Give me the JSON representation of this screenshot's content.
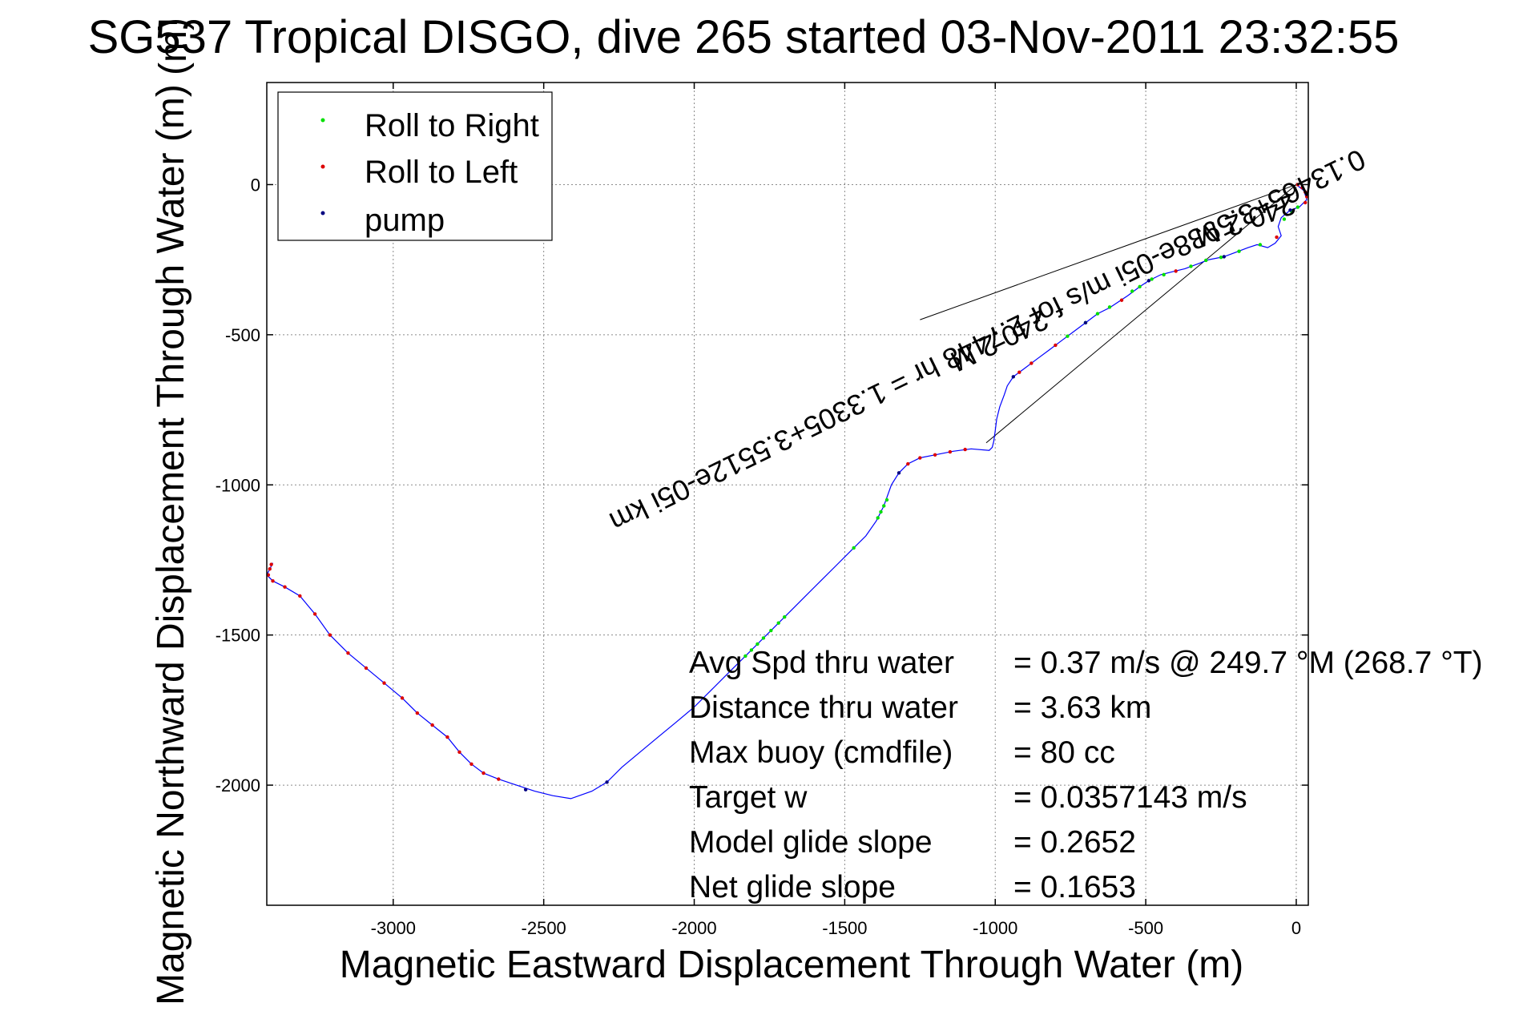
{
  "chart_data": {
    "type": "line",
    "title": "SG537 Tropical DISGO, dive 265 started 03-Nov-2011 23:32:55",
    "title_overlay_glyph": "(m)",
    "xlabel": "Magnetic Eastward Displacement Through Water (m)",
    "ylabel": "Magnetic Northward Displacement Through Water (m)",
    "xlim": [
      -3420,
      40
    ],
    "ylim": [
      -2400,
      340
    ],
    "grid": true,
    "xticks": [
      {
        "value": -3000,
        "label": "-3000"
      },
      {
        "value": -2500,
        "label": "-2500"
      },
      {
        "value": -2000,
        "label": "-2000"
      },
      {
        "value": -1500,
        "label": "-1500"
      },
      {
        "value": -1000,
        "label": "-1000"
      },
      {
        "value": -500,
        "label": "-500"
      },
      {
        "value": 0,
        "label": "0"
      }
    ],
    "yticks": [
      {
        "value": 0,
        "label": "0"
      },
      {
        "value": -500,
        "label": "-500"
      },
      {
        "value": -1000,
        "label": "-1000"
      },
      {
        "value": -1500,
        "label": "-1500"
      },
      {
        "value": -2000,
        "label": "-2000"
      }
    ],
    "legend": {
      "placement": "top-left",
      "entries": [
        {
          "label": "Roll to Right",
          "color": "#00e000"
        },
        {
          "label": "Roll to Left",
          "color": "#dd0000"
        },
        {
          "label": "pump",
          "color": "#000080"
        }
      ]
    },
    "track_color": "#0000ff",
    "track": [
      [
        0,
        0
      ],
      [
        25,
        -20
      ],
      [
        35,
        -50
      ],
      [
        10,
        -75
      ],
      [
        -20,
        -85
      ],
      [
        -50,
        -110
      ],
      [
        -60,
        -140
      ],
      [
        -50,
        -170
      ],
      [
        -70,
        -195
      ],
      [
        -95,
        -210
      ],
      [
        -130,
        -200
      ],
      [
        -160,
        -210
      ],
      [
        -200,
        -225
      ],
      [
        -240,
        -240
      ],
      [
        -290,
        -250
      ],
      [
        -330,
        -265
      ],
      [
        -370,
        -280
      ],
      [
        -410,
        -290
      ],
      [
        -450,
        -300
      ],
      [
        -490,
        -320
      ],
      [
        -520,
        -340
      ],
      [
        -560,
        -370
      ],
      [
        -590,
        -390
      ],
      [
        -620,
        -410
      ],
      [
        -660,
        -430
      ],
      [
        -700,
        -460
      ],
      [
        -740,
        -490
      ],
      [
        -780,
        -520
      ],
      [
        -820,
        -550
      ],
      [
        -860,
        -580
      ],
      [
        -900,
        -610
      ],
      [
        -940,
        -640
      ],
      [
        -960,
        -670
      ],
      [
        -970,
        -700
      ],
      [
        -985,
        -740
      ],
      [
        -995,
        -780
      ],
      [
        -1000,
        -820
      ],
      [
        -1005,
        -855
      ],
      [
        -1010,
        -875
      ],
      [
        -1020,
        -885
      ],
      [
        -1080,
        -880
      ],
      [
        -1140,
        -888
      ],
      [
        -1200,
        -900
      ],
      [
        -1250,
        -910
      ],
      [
        -1290,
        -930
      ],
      [
        -1320,
        -960
      ],
      [
        -1345,
        -1000
      ],
      [
        -1370,
        -1070
      ],
      [
        -1395,
        -1120
      ],
      [
        -1430,
        -1170
      ],
      [
        -1480,
        -1220
      ],
      [
        -1530,
        -1270
      ],
      [
        -1580,
        -1320
      ],
      [
        -1630,
        -1370
      ],
      [
        -1680,
        -1420
      ],
      [
        -1730,
        -1470
      ],
      [
        -1780,
        -1520
      ],
      [
        -1830,
        -1570
      ],
      [
        -1880,
        -1620
      ],
      [
        -1940,
        -1680
      ],
      [
        -2000,
        -1740
      ],
      [
        -2060,
        -1790
      ],
      [
        -2120,
        -1840
      ],
      [
        -2180,
        -1890
      ],
      [
        -2240,
        -1940
      ],
      [
        -2290,
        -1990
      ],
      [
        -2340,
        -2020
      ],
      [
        -2410,
        -2045
      ],
      [
        -2470,
        -2035
      ],
      [
        -2530,
        -2020
      ],
      [
        -2590,
        -2000
      ],
      [
        -2650,
        -1980
      ],
      [
        -2700,
        -1960
      ],
      [
        -2740,
        -1930
      ],
      [
        -2780,
        -1890
      ],
      [
        -2820,
        -1840
      ],
      [
        -2870,
        -1800
      ],
      [
        -2920,
        -1760
      ],
      [
        -2970,
        -1710
      ],
      [
        -3030,
        -1660
      ],
      [
        -3090,
        -1610
      ],
      [
        -3150,
        -1560
      ],
      [
        -3210,
        -1500
      ],
      [
        -3260,
        -1430
      ],
      [
        -3310,
        -1370
      ],
      [
        -3360,
        -1340
      ],
      [
        -3400,
        -1320
      ],
      [
        -3420,
        -1300
      ],
      [
        -3410,
        -1280
      ],
      [
        -3400,
        -1260
      ]
    ],
    "roll_right_points": [
      [
        5,
        -75
      ],
      [
        -15,
        -90
      ],
      [
        -40,
        -115
      ],
      [
        -120,
        -200
      ],
      [
        -190,
        -222
      ],
      [
        -250,
        -242
      ],
      [
        -300,
        -252
      ],
      [
        -350,
        -272
      ],
      [
        -440,
        -300
      ],
      [
        -480,
        -315
      ],
      [
        -520,
        -340
      ],
      [
        -545,
        -355
      ],
      [
        -620,
        -408
      ],
      [
        -660,
        -430
      ],
      [
        -700,
        -460
      ],
      [
        -760,
        -505
      ],
      [
        -1360,
        -1050
      ],
      [
        -1370,
        -1070
      ],
      [
        -1380,
        -1090
      ],
      [
        -1390,
        -1110
      ],
      [
        -1470,
        -1210
      ],
      [
        -1700,
        -1440
      ],
      [
        -1720,
        -1460
      ],
      [
        -1745,
        -1485
      ],
      [
        -1770,
        -1510
      ],
      [
        -1790,
        -1530
      ],
      [
        -1810,
        -1550
      ],
      [
        -1830,
        -1570
      ]
    ],
    "roll_left_points": [
      [
        5,
        0
      ],
      [
        20,
        -10
      ],
      [
        30,
        -25
      ],
      [
        35,
        -40
      ],
      [
        30,
        -60
      ],
      [
        -65,
        -175
      ],
      [
        -400,
        -288
      ],
      [
        -580,
        -385
      ],
      [
        -800,
        -535
      ],
      [
        -880,
        -595
      ],
      [
        -920,
        -625
      ],
      [
        -1100,
        -882
      ],
      [
        -1150,
        -890
      ],
      [
        -1200,
        -900
      ],
      [
        -1250,
        -910
      ],
      [
        -1290,
        -930
      ],
      [
        -2650,
        -1980
      ],
      [
        -2700,
        -1960
      ],
      [
        -2740,
        -1930
      ],
      [
        -2780,
        -1890
      ],
      [
        -2820,
        -1840
      ],
      [
        -2870,
        -1800
      ],
      [
        -2920,
        -1760
      ],
      [
        -2970,
        -1710
      ],
      [
        -3030,
        -1660
      ],
      [
        -3090,
        -1610
      ],
      [
        -3150,
        -1560
      ],
      [
        -3210,
        -1500
      ],
      [
        -3260,
        -1430
      ],
      [
        -3310,
        -1370
      ],
      [
        -3360,
        -1340
      ],
      [
        -3400,
        -1320
      ],
      [
        -3415,
        -1300
      ],
      [
        -3410,
        -1280
      ],
      [
        -3405,
        -1265
      ]
    ],
    "pump_points": [
      [
        -20,
        -85
      ],
      [
        -240,
        -240
      ],
      [
        -490,
        -320
      ],
      [
        -700,
        -460
      ],
      [
        -940,
        -640
      ],
      [
        -1320,
        -960
      ],
      [
        -2290,
        -1990
      ],
      [
        -2560,
        -2015
      ]
    ],
    "reference_lines": [
      {
        "from": [
          0,
          0
        ],
        "to": [
          -1250,
          -450
        ],
        "color": "#000000"
      },
      {
        "from": [
          0,
          0
        ],
        "to": [
          -1030,
          -860
        ],
        "color": "#000000"
      }
    ],
    "rotated_annotations": [
      {
        "text": "0.13465+3.5938e-05i m/s for 2.7448 hr = 1.3305+3.5512e-05i km",
        "x": -1040,
        "y": -490,
        "angle": 154
      },
      {
        "text": "240.2 M",
        "x": -180,
        "y": -90,
        "angle": 160
      },
      {
        "text": "240.2 M",
        "x": -1000,
        "y": -490,
        "angle": 154
      }
    ],
    "stats": [
      {
        "label": "Avg Spd thru water",
        "value": "=  0.37 m/s @ 249.7 °M (268.7 °T)"
      },
      {
        "label": "Distance thru water",
        "value": "=  3.63 km"
      },
      {
        "label": "Max buoy (cmdfile)",
        "value": "= 80 cc"
      },
      {
        "label": "Target w",
        "value": "= 0.0357143 m/s"
      },
      {
        "label": "Model glide slope",
        "value": "= 0.2652"
      },
      {
        "label": "Net glide slope",
        "value": "= 0.1653"
      }
    ]
  }
}
